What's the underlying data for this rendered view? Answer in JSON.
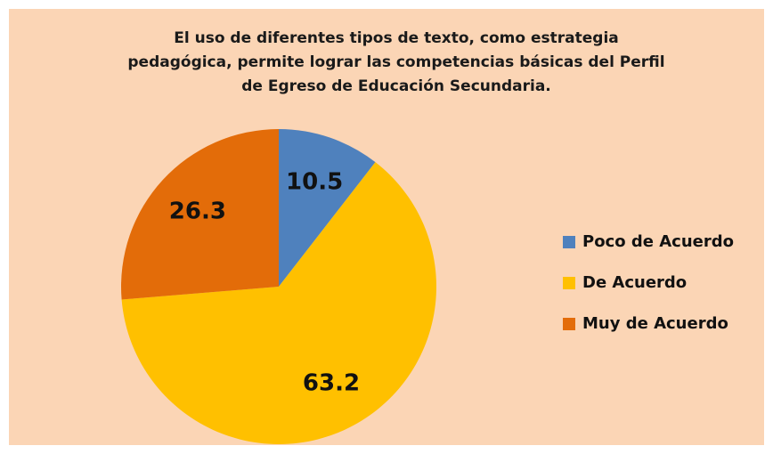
{
  "chart_data": {
    "type": "pie",
    "title": "El uso de diferentes tipos de texto, como estrategia pedagógica, permite lograr las competencias básicas del Perfil de Egreso de Educación Secundaria.",
    "categories": [
      "Poco de Acuerdo",
      "De Acuerdo",
      "Muy de Acuerdo"
    ],
    "values": [
      10.5,
      63.2,
      26.3
    ],
    "colors": [
      "#4f81bd",
      "#ffc000",
      "#e36c09"
    ],
    "legend": "right"
  }
}
